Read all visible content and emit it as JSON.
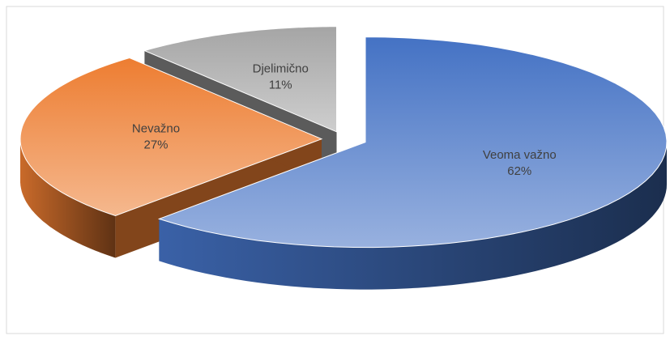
{
  "chart_data": {
    "type": "pie",
    "categories": [
      "Veoma važno",
      "Nevažno",
      "Djelimično"
    ],
    "values": [
      62,
      27,
      11
    ],
    "value_labels": [
      "62%",
      "27%",
      "11%"
    ],
    "colors": [
      "#4472c4",
      "#ed7d31",
      "#a5a5a5"
    ]
  }
}
